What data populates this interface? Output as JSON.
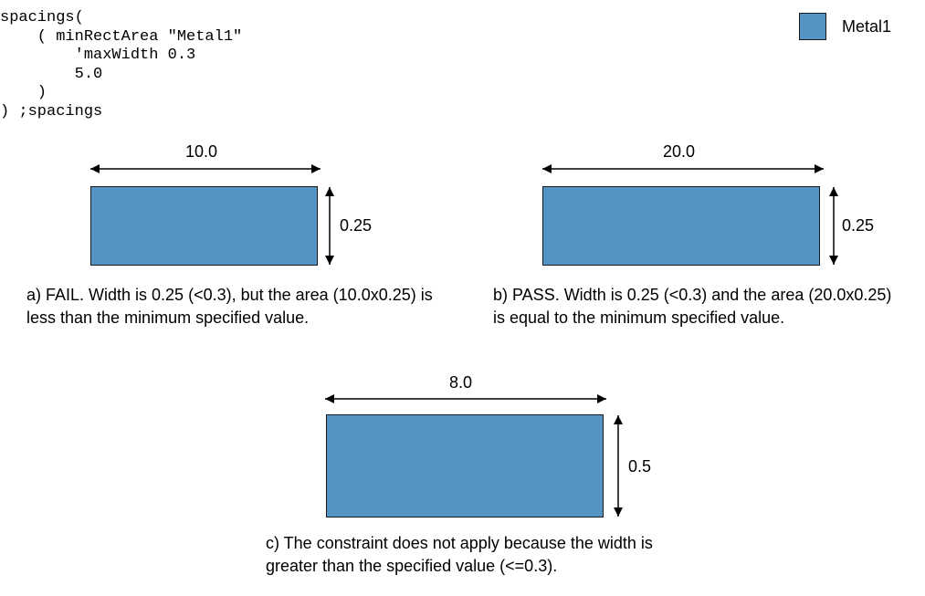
{
  "code": {
    "lines": [
      "spacings(",
      "    ( minRectArea \"Metal1\"",
      "        'maxWidth 0.3",
      "        5.0",
      "    )",
      ") ;spacings"
    ]
  },
  "legend": {
    "label": "Metal1",
    "color": "#5394c4"
  },
  "shape_a": {
    "width_label": "10.0",
    "height_label": "0.25",
    "caption": "a) FAIL. Width is 0.25 (<0.3), but the area (10.0x0.25) is less than the minimum specified value."
  },
  "shape_b": {
    "width_label": "20.0",
    "height_label": "0.25",
    "caption": "b) PASS. Width is 0.25 (<0.3) and the area (20.0x0.25) is equal to the minimum specified value."
  },
  "shape_c": {
    "width_label": "8.0",
    "height_label": "0.5",
    "caption": "c) The constraint does not apply because the width is greater than the specified value (<=0.3)."
  }
}
